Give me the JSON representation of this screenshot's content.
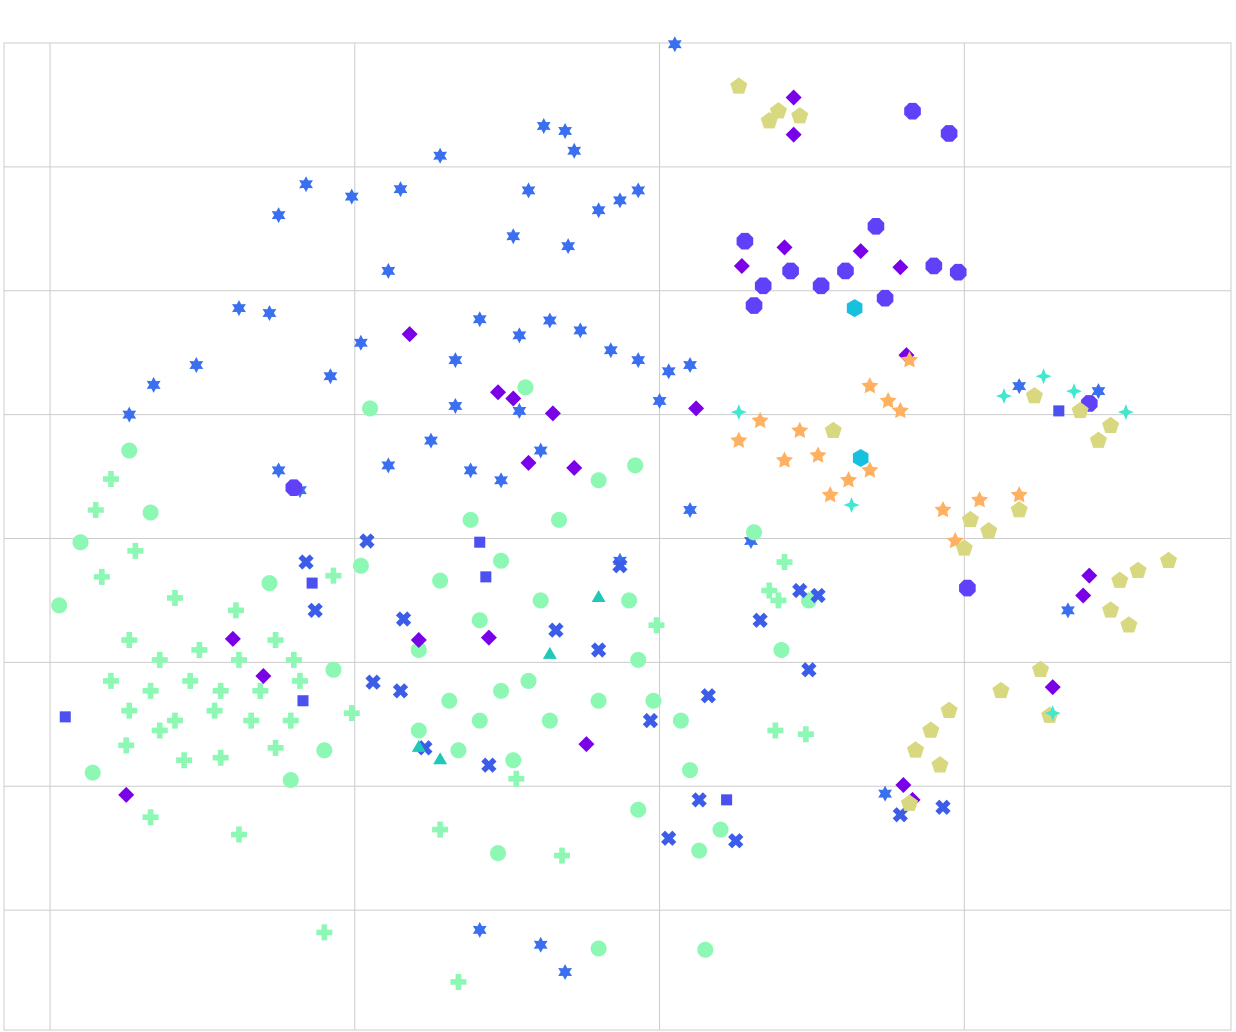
{
  "chart_data": {
    "type": "scatter",
    "xlim": [
      -0.151,
      3.875
    ],
    "ylim": [
      -0.968,
      7
    ],
    "xticks": [
      0,
      1,
      2,
      3
    ],
    "yticks": [
      0,
      1,
      2,
      3,
      4,
      5,
      6,
      7
    ],
    "grid": true,
    "series": [
      {
        "color": "#3a6ff0",
        "marker": "star6",
        "size": 8,
        "x": [
          2.05,
          1.62,
          1.69,
          1.72,
          1.57,
          1.8,
          1.87,
          1.93,
          1.52,
          1.7,
          1.11,
          1.28,
          0.84,
          0.99,
          1.15,
          0.75,
          0.62,
          0.72,
          0.48,
          0.34,
          0.26,
          1.02,
          0.92,
          1.33,
          1.41,
          1.54,
          1.64,
          1.74,
          1.84,
          1.93,
          2.03,
          2.1,
          2.0,
          1.54,
          1.33,
          1.25,
          1.38,
          1.48,
          1.61,
          1.11,
          0.75,
          0.82,
          2.1,
          2.3,
          1.87,
          3.18,
          3.44,
          3.34,
          2.74,
          1.41,
          1.61,
          1.69
        ],
        "values": [
          6.99,
          6.33,
          6.29,
          6.13,
          5.81,
          5.65,
          5.73,
          5.81,
          5.44,
          5.36,
          5.16,
          6.09,
          5.86,
          5.76,
          5.82,
          5.61,
          4.86,
          4.82,
          4.4,
          4.24,
          4.0,
          4.58,
          4.31,
          4.44,
          4.77,
          4.64,
          4.76,
          4.68,
          4.52,
          4.44,
          4.35,
          4.4,
          4.11,
          4.03,
          4.07,
          3.79,
          3.55,
          3.47,
          3.71,
          3.59,
          3.55,
          3.39,
          3.23,
          2.98,
          2.82,
          4.23,
          4.19,
          2.42,
          0.94,
          -0.16,
          -0.28,
          -0.5
        ]
      },
      {
        "color": "#8cf8b4",
        "marker": "circle",
        "size": 8,
        "x": [
          0.26,
          0.33,
          0.1,
          0.03,
          0.72,
          1.02,
          1.28,
          1.38,
          1.48,
          1.61,
          1.67,
          1.8,
          1.92,
          1.9,
          1.41,
          1.21,
          1.31,
          1.48,
          1.57,
          1.64,
          1.41,
          1.21,
          1.34,
          1.52,
          1.8,
          1.93,
          1.98,
          2.07,
          2.1,
          1.93,
          2.2,
          2.13,
          1.47,
          0.93,
          0.9,
          0.79,
          0.14,
          2.15,
          1.8,
          2.4,
          2.49,
          2.31,
          1.05,
          1.56
        ],
        "values": [
          3.71,
          3.21,
          2.97,
          2.46,
          2.64,
          2.78,
          2.66,
          3.15,
          2.82,
          2.5,
          3.15,
          3.47,
          3.59,
          2.5,
          2.34,
          2.1,
          1.69,
          1.77,
          1.85,
          1.53,
          1.53,
          1.45,
          1.29,
          1.21,
          1.69,
          2.02,
          1.69,
          1.53,
          1.13,
          0.81,
          0.65,
          0.48,
          0.46,
          1.94,
          1.29,
          1.05,
          1.11,
          -0.32,
          -0.31,
          2.1,
          2.5,
          3.05,
          4.05,
          4.22
        ]
      },
      {
        "color": "#8cf8b4",
        "marker": "plus",
        "size": 8,
        "x": [
          0.2,
          0.15,
          0.28,
          0.17,
          0.41,
          0.61,
          0.26,
          0.36,
          0.49,
          0.62,
          0.74,
          0.8,
          0.2,
          0.33,
          0.46,
          0.56,
          0.69,
          0.82,
          0.26,
          0.41,
          0.54,
          0.66,
          0.79,
          0.36,
          0.44,
          0.25,
          0.74,
          0.56,
          0.33,
          0.62,
          0.9,
          1.34,
          1.28,
          1.68,
          1.53,
          0.99,
          1.99,
          2.38,
          2.48,
          2.41,
          2.39,
          2.36,
          0.93
        ],
        "values": [
          3.48,
          3.23,
          2.9,
          2.69,
          2.52,
          2.42,
          2.18,
          2.02,
          2.1,
          2.02,
          2.18,
          2.02,
          1.85,
          1.77,
          1.85,
          1.77,
          1.77,
          1.85,
          1.61,
          1.53,
          1.61,
          1.53,
          1.53,
          1.45,
          1.21,
          1.33,
          1.31,
          1.23,
          0.75,
          0.61,
          -0.18,
          -0.58,
          0.65,
          0.44,
          1.06,
          1.59,
          2.3,
          1.45,
          1.42,
          2.81,
          2.5,
          2.58,
          2.7
        ]
      },
      {
        "color": "#3c5de8",
        "marker": "x",
        "size": 8,
        "x": [
          0.84,
          1.04,
          0.87,
          1.16,
          1.06,
          1.15,
          1.23,
          1.44,
          1.66,
          1.8,
          1.97,
          2.16,
          2.13,
          2.03,
          2.25,
          2.46,
          2.52,
          2.33,
          2.49,
          2.93,
          2.79,
          1.87
        ],
        "values": [
          2.81,
          2.98,
          2.42,
          2.35,
          1.84,
          1.77,
          1.31,
          1.17,
          2.26,
          2.1,
          1.53,
          1.73,
          0.89,
          0.58,
          0.56,
          2.58,
          2.54,
          2.34,
          1.94,
          0.83,
          0.77,
          2.78
        ]
      },
      {
        "color": "#7a00e8",
        "marker": "diamond",
        "size": 8,
        "x": [
          2.44,
          2.44,
          1.18,
          1.47,
          1.52,
          1.65,
          1.57,
          1.72,
          2.12,
          2.81,
          2.66,
          2.79,
          2.41,
          2.27,
          0.6,
          0.7,
          0.25,
          1.21,
          1.44,
          1.76,
          3.41,
          3.39,
          3.29,
          2.8,
          2.83
        ],
        "values": [
          6.56,
          6.26,
          4.65,
          4.18,
          4.13,
          4.01,
          3.61,
          3.57,
          4.05,
          4.48,
          5.32,
          5.19,
          5.35,
          5.2,
          2.19,
          1.89,
          0.93,
          2.18,
          2.2,
          1.34,
          2.7,
          2.54,
          1.8,
          1.01,
          0.89
        ]
      },
      {
        "color": "#6040f8",
        "marker": "octagon",
        "size": 9,
        "x": [
          2.83,
          2.95,
          2.28,
          2.34,
          2.43,
          2.53,
          2.61,
          2.71,
          2.74,
          2.9,
          2.98,
          2.31,
          0.8,
          3.01,
          3.41
        ],
        "values": [
          6.45,
          6.27,
          5.4,
          5.04,
          5.16,
          5.04,
          5.16,
          5.52,
          4.94,
          5.2,
          5.15,
          4.88,
          3.41,
          2.6,
          4.09
        ]
      },
      {
        "color": "#ffb060",
        "marker": "star5",
        "size": 9,
        "x": [
          2.26,
          2.33,
          2.46,
          2.69,
          2.79,
          2.82,
          2.62,
          2.56,
          2.69,
          2.52,
          2.41,
          2.93,
          3.05,
          3.18,
          2.97,
          2.75
        ],
        "values": [
          3.79,
          3.95,
          3.87,
          4.23,
          4.03,
          4.44,
          3.47,
          3.35,
          3.55,
          3.67,
          3.63,
          3.23,
          3.31,
          3.35,
          2.98,
          4.11
        ]
      },
      {
        "color": "#d8d880",
        "marker": "pentagon",
        "size": 9,
        "x": [
          2.26,
          2.39,
          2.46,
          2.36,
          2.57,
          3.44,
          3.48,
          3.38,
          3.23,
          3.02,
          3.08,
          3.18,
          3.0,
          3.51,
          3.57,
          3.67,
          3.48,
          3.54,
          3.12,
          3.25,
          3.28,
          2.89,
          2.95,
          2.84,
          2.92,
          2.82
        ],
        "values": [
          6.65,
          6.45,
          6.41,
          6.37,
          3.87,
          3.79,
          3.91,
          4.03,
          4.15,
          3.15,
          3.06,
          3.23,
          2.92,
          2.66,
          2.74,
          2.82,
          2.42,
          2.3,
          1.77,
          1.94,
          1.57,
          1.45,
          1.61,
          1.29,
          1.17,
          0.86
        ]
      },
      {
        "color": "#18c0e0",
        "marker": "hexagon",
        "size": 9,
        "x": [
          2.64,
          2.66
        ],
        "values": [
          4.86,
          3.65
        ]
      },
      {
        "color": "#40e8d0",
        "marker": "star4",
        "size": 8,
        "x": [
          2.26,
          2.63,
          3.26,
          3.13,
          3.36,
          3.53,
          3.29
        ],
        "values": [
          4.02,
          3.27,
          4.31,
          4.15,
          4.19,
          4.02,
          1.59
        ]
      },
      {
        "color": "#4c50f0",
        "marker": "square",
        "size": 6,
        "x": [
          0.05,
          0.83,
          0.86,
          2.22,
          1.41,
          1.43,
          3.31
        ],
        "values": [
          1.56,
          1.69,
          2.64,
          0.89,
          2.97,
          2.69,
          4.03
        ]
      },
      {
        "color": "#20c8b8",
        "marker": "triangle",
        "size": 8,
        "x": [
          1.21,
          1.28,
          1.8,
          1.64
        ],
        "values": [
          1.31,
          1.21,
          2.52,
          2.06
        ]
      }
    ]
  }
}
